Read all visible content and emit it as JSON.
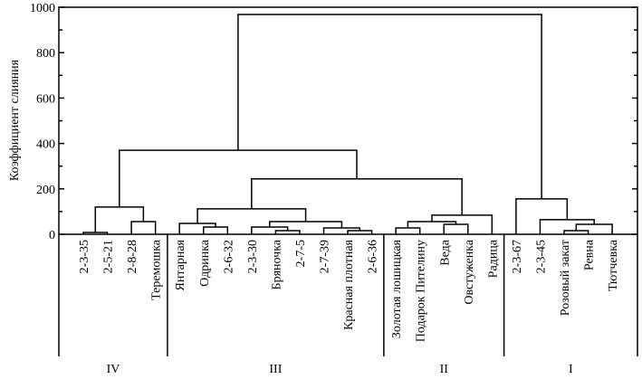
{
  "chart_data": {
    "type": "dendrogram",
    "title": "",
    "ylabel": "Коэффициент слияния",
    "ylim": [
      0,
      1000
    ],
    "yticks": [
      0,
      200,
      400,
      600,
      800,
      1000
    ],
    "leaves": [
      "2-3-35",
      "2-5-21",
      "2-8-28",
      "Теремошка",
      "Янтарная",
      "Одринка",
      "2-6-32",
      "2-3-30",
      "Бряночка",
      "2-7-5",
      "2-7-39",
      "Красная плотная",
      "2-6-36",
      "Золотая лошицкая",
      "Подарок Пителину",
      "Веда",
      "Овстуженка",
      "Радица",
      "2-3-67",
      "2-3-45",
      "Розовый закат",
      "Ревна",
      "Тютчевка"
    ],
    "merges": [
      {
        "a": 0,
        "b": 1,
        "height": 8
      },
      {
        "a": 2,
        "b": 3,
        "height": 56
      },
      {
        "a": 23,
        "b": 24,
        "height": 120
      },
      {
        "a": 5,
        "b": 6,
        "height": 32
      },
      {
        "a": 4,
        "b": 26,
        "height": 48
      },
      {
        "a": 8,
        "b": 9,
        "height": 16
      },
      {
        "a": 7,
        "b": 28,
        "height": 32
      },
      {
        "a": 11,
        "b": 12,
        "height": 16
      },
      {
        "a": 10,
        "b": 30,
        "height": 28
      },
      {
        "a": 29,
        "b": 31,
        "height": 56
      },
      {
        "a": 27,
        "b": 32,
        "height": 112
      },
      {
        "a": 13,
        "b": 14,
        "height": 28
      },
      {
        "a": 15,
        "b": 16,
        "height": 44
      },
      {
        "a": 34,
        "b": 35,
        "height": 56
      },
      {
        "a": 36,
        "b": 17,
        "height": 84
      },
      {
        "a": 33,
        "b": 37,
        "height": 244
      },
      {
        "a": 25,
        "b": 38,
        "height": 370
      },
      {
        "a": 20,
        "b": 21,
        "height": 16
      },
      {
        "a": 40,
        "b": 22,
        "height": 44
      },
      {
        "a": 19,
        "b": 41,
        "height": 64
      },
      {
        "a": 18,
        "b": 42,
        "height": 156
      },
      {
        "a": 39,
        "b": 43,
        "height": 968
      }
    ],
    "groups": [
      {
        "label": "IV",
        "first": 0,
        "last": 3
      },
      {
        "label": "III",
        "first": 4,
        "last": 12
      },
      {
        "label": "II",
        "first": 13,
        "last": 17
      },
      {
        "label": "I",
        "first": 18,
        "last": 22
      }
    ]
  }
}
